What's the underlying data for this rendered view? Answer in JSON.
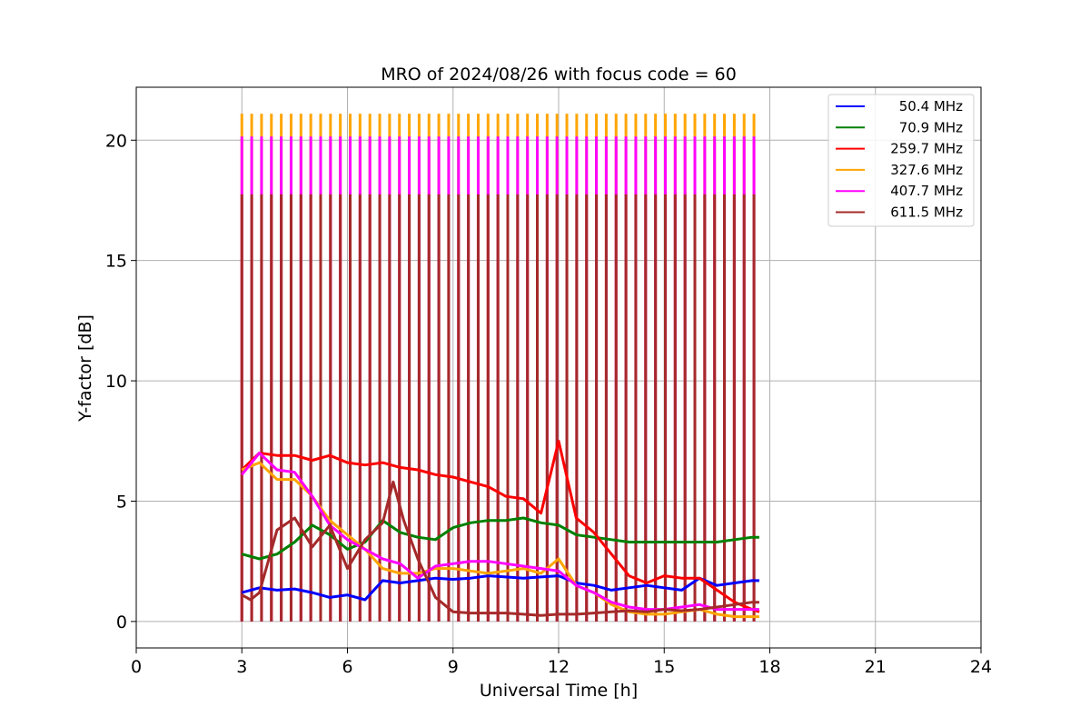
{
  "chart_data": {
    "type": "line",
    "title": "MRO of 2024/08/26 with focus code = 60",
    "xlabel": "Universal Time [h]",
    "ylabel": "Y-factor [dB]",
    "xlim": [
      0,
      24
    ],
    "ylim": [
      -1.1,
      22.2
    ],
    "xticks": [
      0,
      3,
      6,
      9,
      12,
      15,
      18,
      21,
      24
    ],
    "yticks": [
      0,
      5,
      10,
      15,
      20
    ],
    "grid": true,
    "legend_position": "top-right",
    "spikes": {
      "description_x_start": 3.0,
      "x_end": 17.55,
      "count": 53,
      "peak_by_series": {
        "327.6 MHz": 21.1,
        "407.7 MHz": 20.15,
        "611.5 MHz": 17.75
      }
    },
    "series": [
      {
        "name": "50.4 MHz",
        "color": "#0000ff",
        "x": [
          3.0,
          3.5,
          4.0,
          4.5,
          5.0,
          5.5,
          6.0,
          6.5,
          7.0,
          7.5,
          8.0,
          8.5,
          9.0,
          9.5,
          10.0,
          10.5,
          11.0,
          11.5,
          12.0,
          12.5,
          13.0,
          13.5,
          14.0,
          14.5,
          15.0,
          15.5,
          16.0,
          16.5,
          17.0,
          17.5,
          17.7
        ],
        "values": [
          1.2,
          1.4,
          1.3,
          1.35,
          1.2,
          1.0,
          1.1,
          0.9,
          1.7,
          1.6,
          1.7,
          1.8,
          1.75,
          1.8,
          1.9,
          1.85,
          1.8,
          1.85,
          1.9,
          1.6,
          1.5,
          1.3,
          1.4,
          1.5,
          1.4,
          1.3,
          1.8,
          1.5,
          1.6,
          1.7,
          1.7
        ]
      },
      {
        "name": "70.9 MHz",
        "color": "#008000",
        "x": [
          3.0,
          3.5,
          4.0,
          4.5,
          5.0,
          5.5,
          6.0,
          6.5,
          7.0,
          7.5,
          8.0,
          8.5,
          9.0,
          9.5,
          10.0,
          10.5,
          11.0,
          11.5,
          12.0,
          12.5,
          13.0,
          13.5,
          14.0,
          14.5,
          15.0,
          15.5,
          16.0,
          16.5,
          17.0,
          17.5,
          17.7
        ],
        "values": [
          2.8,
          2.6,
          2.8,
          3.3,
          4.0,
          3.6,
          3.0,
          3.3,
          4.2,
          3.7,
          3.5,
          3.4,
          3.9,
          4.1,
          4.2,
          4.2,
          4.3,
          4.1,
          4.0,
          3.6,
          3.5,
          3.4,
          3.3,
          3.3,
          3.3,
          3.3,
          3.3,
          3.3,
          3.4,
          3.5,
          3.5
        ]
      },
      {
        "name": "259.7 MHz",
        "color": "#ff0000",
        "x": [
          3.0,
          3.5,
          4.0,
          4.5,
          5.0,
          5.5,
          6.0,
          6.5,
          7.0,
          7.5,
          8.0,
          8.5,
          9.0,
          9.5,
          10.0,
          10.5,
          11.0,
          11.5,
          12.0,
          12.5,
          13.0,
          13.5,
          14.0,
          14.5,
          15.0,
          15.5,
          16.0,
          16.5,
          17.0,
          17.5,
          17.7
        ],
        "values": [
          6.3,
          7.0,
          6.9,
          6.9,
          6.7,
          6.9,
          6.6,
          6.5,
          6.6,
          6.4,
          6.3,
          6.1,
          6.0,
          5.8,
          5.6,
          5.2,
          5.1,
          4.5,
          7.5,
          4.3,
          3.7,
          2.8,
          1.9,
          1.6,
          1.9,
          1.8,
          1.8,
          1.3,
          0.8,
          0.5,
          0.4
        ]
      },
      {
        "name": "327.6 MHz",
        "color": "#ffa500",
        "x": [
          3.0,
          3.5,
          4.0,
          4.5,
          5.0,
          5.5,
          6.0,
          6.5,
          7.0,
          7.5,
          8.0,
          8.5,
          9.0,
          9.5,
          10.0,
          10.5,
          11.0,
          11.5,
          12.0,
          12.5,
          13.0,
          13.5,
          14.0,
          14.5,
          15.0,
          15.5,
          16.0,
          16.5,
          17.0,
          17.5,
          17.7
        ],
        "values": [
          6.3,
          6.6,
          5.9,
          5.9,
          5.2,
          4.2,
          3.6,
          3.0,
          2.2,
          2.0,
          2.0,
          2.2,
          2.2,
          2.1,
          2.0,
          2.1,
          2.2,
          2.0,
          2.6,
          1.5,
          1.2,
          0.7,
          0.4,
          0.3,
          0.3,
          0.4,
          0.5,
          0.3,
          0.2,
          0.2,
          0.2
        ]
      },
      {
        "name": "407.7 MHz",
        "color": "#ff00ff",
        "x": [
          3.0,
          3.5,
          4.0,
          4.5,
          5.0,
          5.5,
          6.0,
          6.5,
          7.0,
          7.5,
          8.0,
          8.5,
          9.0,
          9.5,
          10.0,
          10.5,
          11.0,
          11.5,
          12.0,
          12.5,
          13.0,
          13.5,
          14.0,
          14.5,
          15.0,
          15.5,
          16.0,
          16.5,
          17.0,
          17.5,
          17.7
        ],
        "values": [
          6.1,
          7.0,
          6.3,
          6.2,
          5.2,
          4.0,
          3.4,
          3.0,
          2.6,
          2.4,
          1.8,
          2.3,
          2.4,
          2.5,
          2.5,
          2.4,
          2.3,
          2.2,
          2.1,
          1.5,
          1.2,
          0.8,
          0.6,
          0.5,
          0.5,
          0.6,
          0.7,
          0.5,
          0.5,
          0.5,
          0.5
        ]
      },
      {
        "name": "611.5 MHz",
        "color": "#a52a2a",
        "x": [
          3.0,
          3.25,
          3.5,
          4.0,
          4.5,
          5.0,
          5.5,
          6.0,
          6.5,
          7.0,
          7.3,
          7.6,
          8.0,
          8.5,
          9.0,
          9.5,
          10.0,
          10.5,
          11.0,
          11.5,
          12.0,
          12.5,
          13.0,
          13.5,
          14.0,
          14.5,
          15.0,
          15.5,
          16.0,
          16.5,
          17.0,
          17.5,
          17.7
        ],
        "values": [
          1.1,
          0.9,
          1.2,
          3.8,
          4.3,
          3.1,
          4.0,
          2.2,
          3.4,
          4.1,
          5.8,
          4.2,
          2.6,
          1.0,
          0.4,
          0.35,
          0.35,
          0.35,
          0.3,
          0.25,
          0.3,
          0.3,
          0.35,
          0.4,
          0.45,
          0.4,
          0.5,
          0.45,
          0.5,
          0.6,
          0.7,
          0.8,
          0.8
        ]
      }
    ]
  }
}
